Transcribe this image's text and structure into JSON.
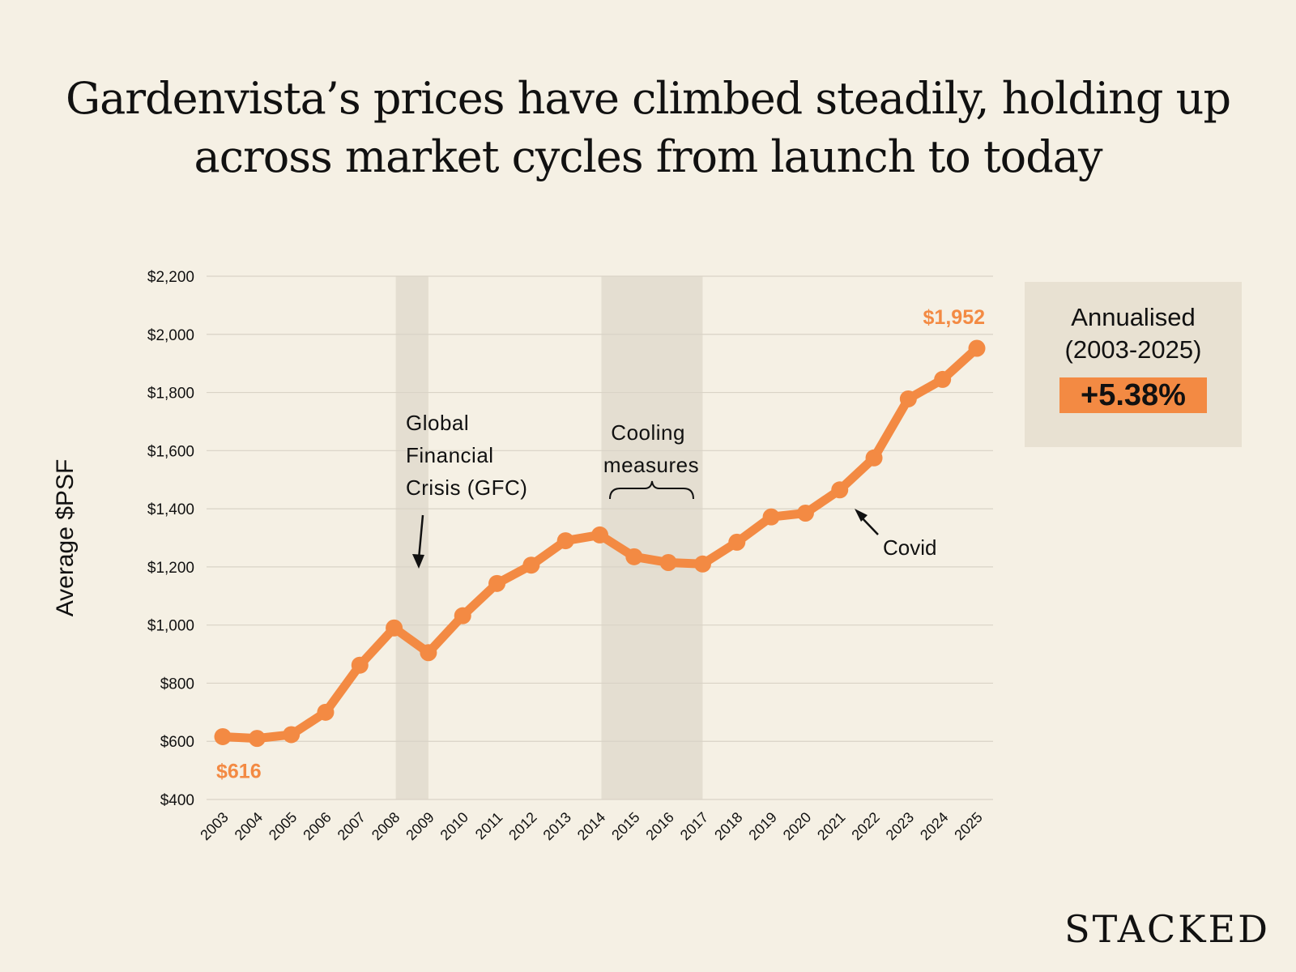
{
  "title": {
    "line1": "Gardenvista’s prices have climbed steadily, holding up",
    "line2": "across market cycles from launch to today"
  },
  "stat": {
    "label_line1": "Annualised",
    "label_line2": "(2003-2025)",
    "value": "+5.38%"
  },
  "brand": "STACKED",
  "colors": {
    "background": "#f5f0e4",
    "line": "#f38a43",
    "shade": "#e4ded1",
    "stat_box": "#e8e1d2"
  },
  "chart_data": {
    "type": "line",
    "ylabel": "Average $PSF",
    "xlabel": "",
    "ylim": [
      400,
      2200
    ],
    "yticks": [
      400,
      600,
      800,
      1000,
      1200,
      1400,
      1600,
      1800,
      2000,
      2200
    ],
    "ytick_labels": [
      "$400",
      "$600",
      "$800",
      "$1,000",
      "$1,200",
      "$1,400",
      "$1,600",
      "$1,800",
      "$2,000",
      "$2,200"
    ],
    "grid": true,
    "x": [
      "2003",
      "2004",
      "2005",
      "2006",
      "2007",
      "2008",
      "2009",
      "2010",
      "2011",
      "2012",
      "2013",
      "2014",
      "2015",
      "2016",
      "2017",
      "2018",
      "2019",
      "2020",
      "2021",
      "2022",
      "2023",
      "2024",
      "2025"
    ],
    "series": [
      {
        "values": [
          616,
          610,
          623,
          700,
          862,
          990,
          905,
          1032,
          1143,
          1206,
          1290,
          1310,
          1235,
          1215,
          1210,
          1285,
          1372,
          1385,
          1465,
          1575,
          1778,
          1845,
          1952
        ]
      }
    ],
    "labels": [
      {
        "year": "2003",
        "text": "$616"
      },
      {
        "year": "2025",
        "text": "$1,952"
      }
    ],
    "shaded_periods": [
      {
        "from": "2008",
        "to": "2009"
      },
      {
        "from": "2014",
        "to": "2017"
      }
    ],
    "annotations": [
      {
        "id": "gfc",
        "lines": [
          "Global",
          "Financial",
          "Crisis (GFC)"
        ]
      },
      {
        "id": "cooling",
        "lines": [
          "Cooling",
          "measures"
        ]
      },
      {
        "id": "covid",
        "lines": [
          "Covid"
        ]
      }
    ]
  }
}
